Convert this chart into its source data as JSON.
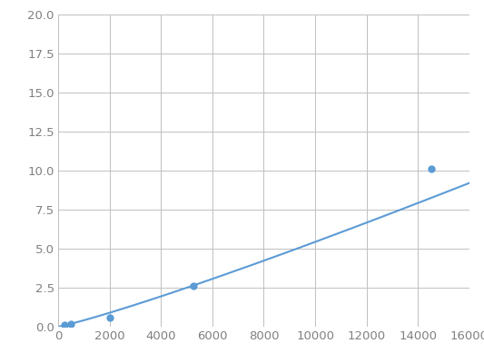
{
  "x": [
    250,
    500,
    2000,
    5250,
    14500
  ],
  "y": [
    0.1,
    0.2,
    0.6,
    2.6,
    10.1
  ],
  "line_color": "#5b9bd5",
  "marker_color": "#5b9bd5",
  "marker_size": 5,
  "xlim": [
    0,
    16000
  ],
  "ylim": [
    0,
    20.0
  ],
  "xticks": [
    0,
    2000,
    4000,
    6000,
    8000,
    10000,
    12000,
    14000,
    16000
  ],
  "yticks": [
    0.0,
    2.5,
    5.0,
    7.5,
    10.0,
    12.5,
    15.0,
    17.5,
    20.0
  ],
  "grid_color": "#c0c0c0",
  "background_color": "#ffffff",
  "tick_label_color": "#808080",
  "tick_label_fontsize": 9.5,
  "figsize": [
    5.33,
    4.0
  ],
  "dpi": 100
}
